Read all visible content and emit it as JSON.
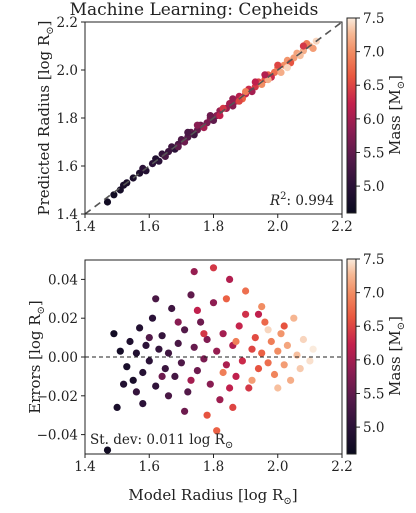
{
  "chart_data": [
    {
      "type": "scatter",
      "title": "Machine Learning: Cepheids",
      "xlabel": "",
      "ylabel": "Predicted Radius [log R",
      "ylabel_sub": "⊙",
      "xlim": [
        1.4,
        2.2
      ],
      "ylim": [
        1.4,
        2.2
      ],
      "xticks": [
        "1.4",
        "1.6",
        "1.8",
        "2.0",
        "2.2"
      ],
      "yticks": [
        "1.4",
        "1.6",
        "1.8",
        "2.0",
        "2.2"
      ],
      "reference_line": "y = x (dashed)",
      "annotation_prefix": "R",
      "annotation_sup": "2",
      "annotation_value": ": 0.994",
      "colorbar": {
        "label": "Mass [M",
        "label_sub": "⊙",
        "range": [
          4.6,
          7.5
        ],
        "ticks": [
          "5.0",
          "5.5",
          "6.0",
          "6.5",
          "7.0",
          "7.5"
        ],
        "colormap": "rocket"
      },
      "points": [
        {
          "x": 1.47,
          "y": 1.45,
          "mass": 4.7
        },
        {
          "x": 1.49,
          "y": 1.48,
          "mass": 4.7
        },
        {
          "x": 1.51,
          "y": 1.5,
          "mass": 4.75
        },
        {
          "x": 1.52,
          "y": 1.52,
          "mass": 4.8
        },
        {
          "x": 1.55,
          "y": 1.55,
          "mass": 4.8
        },
        {
          "x": 1.57,
          "y": 1.57,
          "mass": 4.85
        },
        {
          "x": 1.59,
          "y": 1.58,
          "mass": 4.9
        },
        {
          "x": 1.61,
          "y": 1.61,
          "mass": 5.0
        },
        {
          "x": 1.63,
          "y": 1.62,
          "mass": 5.0
        },
        {
          "x": 1.64,
          "y": 1.65,
          "mass": 5.1
        },
        {
          "x": 1.66,
          "y": 1.66,
          "mass": 5.15
        },
        {
          "x": 1.67,
          "y": 1.68,
          "mass": 5.2
        },
        {
          "x": 1.69,
          "y": 1.69,
          "mass": 5.3
        },
        {
          "x": 1.7,
          "y": 1.71,
          "mass": 5.35
        },
        {
          "x": 1.72,
          "y": 1.72,
          "mass": 5.4
        },
        {
          "x": 1.73,
          "y": 1.74,
          "mass": 5.5
        },
        {
          "x": 1.75,
          "y": 1.75,
          "mass": 5.55
        },
        {
          "x": 1.76,
          "y": 1.77,
          "mass": 5.6
        },
        {
          "x": 1.78,
          "y": 1.78,
          "mass": 5.7
        },
        {
          "x": 1.79,
          "y": 1.8,
          "mass": 5.75
        },
        {
          "x": 1.81,
          "y": 1.81,
          "mass": 5.8
        },
        {
          "x": 1.82,
          "y": 1.83,
          "mass": 5.9
        },
        {
          "x": 1.84,
          "y": 1.84,
          "mass": 5.95
        },
        {
          "x": 1.85,
          "y": 1.86,
          "mass": 6.0
        },
        {
          "x": 1.87,
          "y": 1.87,
          "mass": 6.1
        },
        {
          "x": 1.88,
          "y": 1.89,
          "mass": 6.15
        },
        {
          "x": 1.9,
          "y": 1.9,
          "mass": 6.25
        },
        {
          "x": 1.91,
          "y": 1.92,
          "mass": 6.3
        },
        {
          "x": 1.93,
          "y": 1.93,
          "mass": 6.4
        },
        {
          "x": 1.94,
          "y": 1.95,
          "mass": 6.5
        },
        {
          "x": 1.96,
          "y": 1.96,
          "mass": 6.6
        },
        {
          "x": 1.97,
          "y": 1.98,
          "mass": 6.7
        },
        {
          "x": 1.99,
          "y": 1.99,
          "mass": 6.8
        },
        {
          "x": 2.0,
          "y": 2.01,
          "mass": 6.9
        },
        {
          "x": 2.02,
          "y": 2.02,
          "mass": 7.0
        },
        {
          "x": 2.03,
          "y": 2.04,
          "mass": 7.05
        },
        {
          "x": 2.05,
          "y": 2.05,
          "mass": 7.1
        },
        {
          "x": 2.06,
          "y": 2.07,
          "mass": 7.15
        },
        {
          "x": 2.08,
          "y": 2.08,
          "mass": 7.2
        },
        {
          "x": 2.1,
          "y": 2.1,
          "mass": 7.3
        },
        {
          "x": 2.12,
          "y": 2.12,
          "mass": 7.4
        },
        {
          "x": 1.62,
          "y": 1.63,
          "mass": 4.9
        },
        {
          "x": 1.68,
          "y": 1.67,
          "mass": 5.0
        },
        {
          "x": 1.74,
          "y": 1.73,
          "mass": 5.2
        },
        {
          "x": 1.8,
          "y": 1.79,
          "mass": 5.5
        },
        {
          "x": 1.86,
          "y": 1.85,
          "mass": 5.8
        },
        {
          "x": 1.92,
          "y": 1.91,
          "mass": 6.0
        },
        {
          "x": 1.98,
          "y": 1.97,
          "mass": 6.3
        },
        {
          "x": 2.04,
          "y": 2.03,
          "mass": 6.6
        },
        {
          "x": 2.09,
          "y": 2.11,
          "mass": 6.9
        },
        {
          "x": 2.01,
          "y": 1.99,
          "mass": 7.2
        },
        {
          "x": 1.95,
          "y": 1.94,
          "mass": 7.0
        },
        {
          "x": 1.89,
          "y": 1.88,
          "mass": 6.7
        },
        {
          "x": 1.83,
          "y": 1.84,
          "mass": 6.4
        },
        {
          "x": 1.77,
          "y": 1.76,
          "mass": 6.0
        },
        {
          "x": 1.71,
          "y": 1.7,
          "mass": 5.6
        },
        {
          "x": 1.65,
          "y": 1.64,
          "mass": 5.3
        },
        {
          "x": 1.58,
          "y": 1.59,
          "mass": 5.0
        },
        {
          "x": 1.53,
          "y": 1.53,
          "mass": 4.8
        },
        {
          "x": 2.07,
          "y": 2.06,
          "mass": 7.3
        },
        {
          "x": 2.11,
          "y": 2.09,
          "mass": 7.1
        },
        {
          "x": 2.0,
          "y": 2.02,
          "mass": 6.5
        },
        {
          "x": 1.93,
          "y": 1.95,
          "mass": 6.2
        },
        {
          "x": 1.86,
          "y": 1.88,
          "mass": 5.9
        },
        {
          "x": 1.79,
          "y": 1.81,
          "mass": 5.6
        },
        {
          "x": 1.72,
          "y": 1.74,
          "mass": 5.3
        },
        {
          "x": 2.03,
          "y": 2.01,
          "mass": 7.4
        },
        {
          "x": 1.97,
          "y": 1.96,
          "mass": 7.2
        },
        {
          "x": 1.9,
          "y": 1.91,
          "mass": 6.9
        },
        {
          "x": 2.08,
          "y": 2.1,
          "mass": 6.4
        },
        {
          "x": 1.96,
          "y": 1.98,
          "mass": 6.1
        },
        {
          "x": 1.88,
          "y": 1.87,
          "mass": 6.5
        },
        {
          "x": 1.82,
          "y": 1.81,
          "mass": 6.2
        },
        {
          "x": 1.75,
          "y": 1.77,
          "mass": 5.8
        },
        {
          "x": 1.69,
          "y": 1.68,
          "mass": 5.5
        }
      ]
    },
    {
      "type": "scatter",
      "title": "",
      "xlabel": "Model Radius [log R",
      "xlabel_sub": "⊙",
      "ylabel": "Errors [log R",
      "ylabel_sub": "⊙",
      "xlim": [
        1.4,
        2.2
      ],
      "ylim": [
        -0.05,
        0.05
      ],
      "xticks": [
        "1.4",
        "1.6",
        "1.8",
        "2.0",
        "2.2"
      ],
      "yticks": [
        "−0.04",
        "−0.02",
        "0.00",
        "0.02",
        "0.04"
      ],
      "reference_line": "y = 0 (dashed)",
      "annotation_prefix": "St. dev: 0.011 log R",
      "annotation_sub": "⊙",
      "colorbar": {
        "label": "Mass [M",
        "label_sub": "⊙",
        "range": [
          4.6,
          7.5
        ],
        "ticks": [
          "5.0",
          "5.5",
          "6.0",
          "6.5",
          "7.0",
          "7.5"
        ],
        "colormap": "rocket"
      },
      "points": [
        {
          "x": 1.47,
          "y": -0.048,
          "mass": 4.7
        },
        {
          "x": 1.5,
          "y": -0.026,
          "mass": 4.8
        },
        {
          "x": 1.49,
          "y": 0.012,
          "mass": 4.7
        },
        {
          "x": 1.51,
          "y": 0.003,
          "mass": 4.75
        },
        {
          "x": 1.53,
          "y": -0.005,
          "mass": 4.8
        },
        {
          "x": 1.54,
          "y": 0.008,
          "mass": 4.85
        },
        {
          "x": 1.55,
          "y": -0.012,
          "mass": 4.8
        },
        {
          "x": 1.56,
          "y": 0.002,
          "mass": 4.9
        },
        {
          "x": 1.57,
          "y": 0.015,
          "mass": 4.9
        },
        {
          "x": 1.58,
          "y": -0.008,
          "mass": 4.95
        },
        {
          "x": 1.59,
          "y": 0.006,
          "mass": 5.0
        },
        {
          "x": 1.6,
          "y": -0.002,
          "mass": 5.0
        },
        {
          "x": 1.61,
          "y": 0.02,
          "mass": 5.0
        },
        {
          "x": 1.62,
          "y": -0.015,
          "mass": 5.05
        },
        {
          "x": 1.63,
          "y": 0.004,
          "mass": 5.1
        },
        {
          "x": 1.64,
          "y": 0.011,
          "mass": 5.1
        },
        {
          "x": 1.65,
          "y": -0.006,
          "mass": 5.15
        },
        {
          "x": 1.66,
          "y": 0.002,
          "mass": 5.2
        },
        {
          "x": 1.67,
          "y": 0.025,
          "mass": 5.2
        },
        {
          "x": 1.68,
          "y": -0.01,
          "mass": 5.25
        },
        {
          "x": 1.69,
          "y": 0.007,
          "mass": 5.3
        },
        {
          "x": 1.7,
          "y": -0.003,
          "mass": 5.35
        },
        {
          "x": 1.71,
          "y": 0.014,
          "mass": 5.4
        },
        {
          "x": 1.72,
          "y": -0.018,
          "mass": 5.4
        },
        {
          "x": 1.73,
          "y": 0.032,
          "mass": 5.5
        },
        {
          "x": 1.74,
          "y": 0.005,
          "mass": 5.55
        },
        {
          "x": 1.75,
          "y": -0.007,
          "mass": 5.6
        },
        {
          "x": 1.76,
          "y": 0.018,
          "mass": 5.6
        },
        {
          "x": 1.77,
          "y": -0.001,
          "mass": 5.7
        },
        {
          "x": 1.78,
          "y": 0.009,
          "mass": 5.75
        },
        {
          "x": 1.79,
          "y": -0.014,
          "mass": 5.8
        },
        {
          "x": 1.8,
          "y": 0.028,
          "mass": 5.85
        },
        {
          "x": 1.81,
          "y": 0.003,
          "mass": 5.9
        },
        {
          "x": 1.82,
          "y": -0.022,
          "mass": 5.95
        },
        {
          "x": 1.83,
          "y": 0.012,
          "mass": 6.0
        },
        {
          "x": 1.84,
          "y": -0.004,
          "mass": 6.05
        },
        {
          "x": 1.85,
          "y": 0.04,
          "mass": 6.1
        },
        {
          "x": 1.86,
          "y": 0.006,
          "mass": 6.1
        },
        {
          "x": 1.87,
          "y": -0.01,
          "mass": 6.2
        },
        {
          "x": 1.88,
          "y": 0.016,
          "mass": 6.25
        },
        {
          "x": 1.89,
          "y": -0.002,
          "mass": 6.3
        },
        {
          "x": 1.9,
          "y": 0.022,
          "mass": 6.35
        },
        {
          "x": 1.91,
          "y": -0.016,
          "mass": 6.4
        },
        {
          "x": 1.92,
          "y": 0.004,
          "mass": 6.5
        },
        {
          "x": 1.93,
          "y": 0.01,
          "mass": 6.55
        },
        {
          "x": 1.94,
          "y": -0.006,
          "mass": 6.6
        },
        {
          "x": 1.95,
          "y": 0.002,
          "mass": 6.7
        },
        {
          "x": 1.96,
          "y": 0.018,
          "mass": 6.75
        },
        {
          "x": 1.97,
          "y": -0.003,
          "mass": 6.8
        },
        {
          "x": 1.98,
          "y": 0.008,
          "mass": 6.9
        },
        {
          "x": 1.99,
          "y": -0.009,
          "mass": 6.95
        },
        {
          "x": 2.0,
          "y": 0.003,
          "mass": 7.0
        },
        {
          "x": 2.01,
          "y": 0.012,
          "mass": 7.05
        },
        {
          "x": 2.02,
          "y": -0.004,
          "mass": 7.1
        },
        {
          "x": 2.03,
          "y": 0.006,
          "mass": 7.15
        },
        {
          "x": 2.04,
          "y": -0.012,
          "mass": 7.2
        },
        {
          "x": 2.05,
          "y": 0.02,
          "mass": 7.25
        },
        {
          "x": 2.06,
          "y": 0.001,
          "mass": 7.3
        },
        {
          "x": 2.07,
          "y": -0.006,
          "mass": 7.35
        },
        {
          "x": 2.08,
          "y": 0.009,
          "mass": 7.4
        },
        {
          "x": 2.1,
          "y": -0.002,
          "mass": 7.45
        },
        {
          "x": 2.11,
          "y": 0.004,
          "mass": 7.5
        },
        {
          "x": 1.78,
          "y": -0.03,
          "mass": 6.6
        },
        {
          "x": 1.81,
          "y": -0.038,
          "mass": 6.7
        },
        {
          "x": 1.86,
          "y": -0.026,
          "mass": 6.5
        },
        {
          "x": 1.9,
          "y": 0.034,
          "mass": 6.8
        },
        {
          "x": 1.74,
          "y": 0.044,
          "mass": 5.9
        },
        {
          "x": 1.8,
          "y": 0.046,
          "mass": 6.4
        },
        {
          "x": 1.62,
          "y": 0.03,
          "mass": 5.3
        },
        {
          "x": 1.58,
          "y": -0.024,
          "mass": 5.0
        },
        {
          "x": 1.66,
          "y": -0.02,
          "mass": 5.3
        },
        {
          "x": 1.71,
          "y": -0.028,
          "mass": 5.6
        },
        {
          "x": 1.75,
          "y": 0.024,
          "mass": 6.2
        },
        {
          "x": 1.84,
          "y": 0.03,
          "mass": 6.7
        },
        {
          "x": 1.95,
          "y": 0.026,
          "mass": 7.0
        },
        {
          "x": 2.0,
          "y": -0.016,
          "mass": 7.3
        },
        {
          "x": 1.87,
          "y": 0.008,
          "mass": 6.9
        },
        {
          "x": 1.92,
          "y": -0.012,
          "mass": 7.1
        },
        {
          "x": 1.97,
          "y": 0.014,
          "mass": 7.4
        },
        {
          "x": 2.02,
          "y": 0.016,
          "mass": 6.6
        },
        {
          "x": 1.94,
          "y": 0.022,
          "mass": 6.2
        },
        {
          "x": 1.83,
          "y": -0.008,
          "mass": 6.9
        },
        {
          "x": 1.77,
          "y": 0.012,
          "mass": 6.4
        },
        {
          "x": 1.64,
          "y": -0.01,
          "mass": 5.6
        },
        {
          "x": 1.6,
          "y": 0.01,
          "mass": 5.4
        },
        {
          "x": 1.52,
          "y": -0.014,
          "mass": 4.9
        },
        {
          "x": 1.56,
          "y": -0.018,
          "mass": 5.1
        },
        {
          "x": 1.69,
          "y": 0.018,
          "mass": 5.8
        },
        {
          "x": 1.73,
          "y": -0.012,
          "mass": 6.0
        },
        {
          "x": 1.85,
          "y": -0.016,
          "mass": 6.2
        }
      ]
    }
  ]
}
